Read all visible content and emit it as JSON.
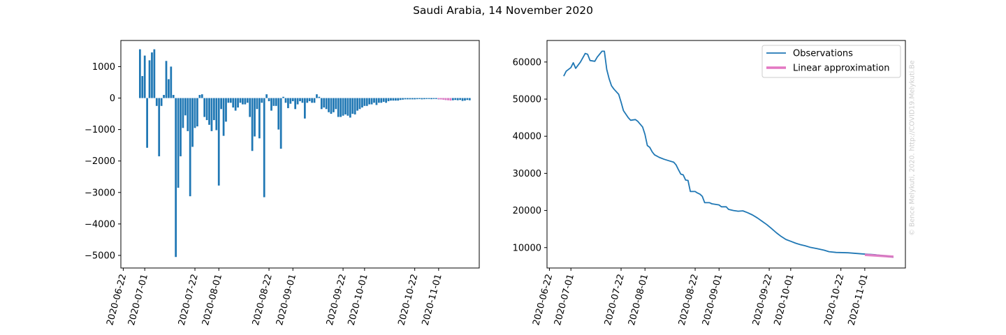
{
  "title": "Saudi Arabia, 14 November 2020",
  "watermark": "© Bence Melykuti, 2020. http://COVID19.Melykuti.Be",
  "colors": {
    "observations": "#1f77b4",
    "approximation": "#e377c2"
  },
  "chart_data": [
    {
      "type": "bar",
      "date_ticks": [
        "2020-06-22",
        "2020-07-01",
        "2020-07-22",
        "2020-08-01",
        "2020-08-22",
        "2020-09-01",
        "2020-09-22",
        "2020-10-01",
        "2020-10-22",
        "2020-11-01"
      ],
      "y_ticks": [
        -5000,
        -4000,
        -3000,
        -2000,
        -1000,
        0,
        1000
      ],
      "ylim": [
        -5400,
        1830
      ],
      "series": [
        {
          "start_date": "2020-06-29",
          "values": [
            1550,
            700,
            1350,
            -1580,
            1200,
            1450,
            1550,
            -250,
            -1850,
            -250,
            100,
            1180,
            600,
            1000,
            100,
            -5050,
            -2850,
            -1850,
            -950,
            -550,
            -1050,
            -3120,
            -1550,
            -950,
            -900,
            100,
            120,
            -600,
            -700,
            -850,
            -1050,
            -700,
            -1020,
            -2780,
            -350,
            -1200,
            -750,
            -150,
            -150,
            -300,
            -400,
            -300,
            -150,
            -200,
            -200,
            -150,
            -600,
            -1680,
            -1220,
            -350,
            -1280,
            -150,
            -3150,
            120,
            -100,
            -400,
            -250,
            -250,
            -1000,
            -1610,
            40,
            -150,
            -320,
            -180,
            -100,
            -350,
            -200,
            -100,
            -150,
            -650,
            -150,
            -100,
            -150,
            -150,
            120,
            40,
            -350,
            -300,
            -350,
            -450,
            -500,
            -450,
            -350,
            -600,
            -600,
            -560,
            -520,
            -560,
            -620,
            -500,
            -520,
            -400,
            -350,
            -300,
            -250,
            -250,
            -200,
            -200,
            -150,
            -220,
            -150,
            -150,
            -120,
            -150,
            -100,
            -80,
            -80,
            -80,
            -80,
            -60,
            -50,
            -40,
            -40,
            -40,
            -40,
            -40,
            -35,
            -30,
            -40,
            -35,
            -30,
            -30,
            -35,
            -30,
            -30,
            -40,
            -40,
            -40,
            -60,
            -50,
            -60,
            -70,
            -60,
            -70,
            -60,
            -90,
            -80,
            -60,
            -70
          ],
          "color": "#1f77b4"
        },
        {
          "start_date": "2020-11-01",
          "values": [
            -35,
            -44,
            -53,
            -62,
            -71,
            -80
          ],
          "color": "#e377c2"
        }
      ]
    },
    {
      "type": "line",
      "date_ticks": [
        "2020-06-22",
        "2020-07-01",
        "2020-07-22",
        "2020-08-01",
        "2020-08-22",
        "2020-09-01",
        "2020-09-22",
        "2020-10-01",
        "2020-10-22",
        "2020-11-01"
      ],
      "y_ticks": [
        10000,
        20000,
        30000,
        40000,
        50000,
        60000
      ],
      "ylim": [
        4500,
        65800
      ],
      "legend_position": "top-right",
      "series": [
        {
          "name": "Observations",
          "color": "#1f77b4",
          "points": [
            [
              "2020-06-28",
              56200
            ],
            [
              "2020-06-29",
              57500
            ],
            [
              "2020-07-01",
              58500
            ],
            [
              "2020-07-02",
              59800
            ],
            [
              "2020-07-03",
              58300
            ],
            [
              "2020-07-05",
              60000
            ],
            [
              "2020-07-07",
              62300
            ],
            [
              "2020-07-08",
              62100
            ],
            [
              "2020-07-09",
              60400
            ],
            [
              "2020-07-11",
              60200
            ],
            [
              "2020-07-12",
              61300
            ],
            [
              "2020-07-14",
              62900
            ],
            [
              "2020-07-15",
              62900
            ],
            [
              "2020-07-16",
              58000
            ],
            [
              "2020-07-17",
              55500
            ],
            [
              "2020-07-18",
              53600
            ],
            [
              "2020-07-19",
              52700
            ],
            [
              "2020-07-21",
              51300
            ],
            [
              "2020-07-22",
              49200
            ],
            [
              "2020-07-23",
              46900
            ],
            [
              "2020-07-25",
              45000
            ],
            [
              "2020-07-26",
              44300
            ],
            [
              "2020-07-28",
              44500
            ],
            [
              "2020-07-29",
              44000
            ],
            [
              "2020-07-31",
              42500
            ],
            [
              "2020-08-01",
              40500
            ],
            [
              "2020-08-02",
              37500
            ],
            [
              "2020-08-03",
              37000
            ],
            [
              "2020-08-04",
              35800
            ],
            [
              "2020-08-05",
              35000
            ],
            [
              "2020-08-07",
              34300
            ],
            [
              "2020-08-09",
              33800
            ],
            [
              "2020-08-11",
              33400
            ],
            [
              "2020-08-13",
              33000
            ],
            [
              "2020-08-14",
              32300
            ],
            [
              "2020-08-15",
              31000
            ],
            [
              "2020-08-16",
              29800
            ],
            [
              "2020-08-17",
              29600
            ],
            [
              "2020-08-18",
              28200
            ],
            [
              "2020-08-19",
              28100
            ],
            [
              "2020-08-20",
              25100
            ],
            [
              "2020-08-22",
              25100
            ],
            [
              "2020-08-23",
              24700
            ],
            [
              "2020-08-24",
              24400
            ],
            [
              "2020-08-25",
              23800
            ],
            [
              "2020-08-26",
              22100
            ],
            [
              "2020-08-28",
              22100
            ],
            [
              "2020-08-29",
              21800
            ],
            [
              "2020-09-01",
              21500
            ],
            [
              "2020-09-02",
              21000
            ],
            [
              "2020-09-04",
              21000
            ],
            [
              "2020-09-05",
              20300
            ],
            [
              "2020-09-07",
              20000
            ],
            [
              "2020-09-09",
              19800
            ],
            [
              "2020-09-11",
              19900
            ],
            [
              "2020-09-13",
              19400
            ],
            [
              "2020-09-15",
              18800
            ],
            [
              "2020-09-17",
              18000
            ],
            [
              "2020-09-19",
              17100
            ],
            [
              "2020-09-21",
              16200
            ],
            [
              "2020-09-23",
              15100
            ],
            [
              "2020-09-25",
              14000
            ],
            [
              "2020-09-27",
              13000
            ],
            [
              "2020-09-29",
              12200
            ],
            [
              "2020-10-01",
              11700
            ],
            [
              "2020-10-03",
              11200
            ],
            [
              "2020-10-05",
              10800
            ],
            [
              "2020-10-07",
              10500
            ],
            [
              "2020-10-09",
              10100
            ],
            [
              "2020-10-12",
              9700
            ],
            [
              "2020-10-15",
              9300
            ],
            [
              "2020-10-17",
              8900
            ],
            [
              "2020-10-20",
              8700
            ],
            [
              "2020-10-25",
              8600
            ],
            [
              "2020-10-31",
              8300
            ],
            [
              "2020-11-05",
              8100
            ],
            [
              "2020-11-09",
              7800
            ],
            [
              "2020-11-12",
              7500
            ],
            [
              "2020-11-13",
              7400
            ]
          ]
        },
        {
          "name": "Linear approximation",
          "color": "#e377c2",
          "points": [
            [
              "2020-11-01",
              8050
            ],
            [
              "2020-11-13",
              7550
            ]
          ]
        }
      ]
    }
  ]
}
